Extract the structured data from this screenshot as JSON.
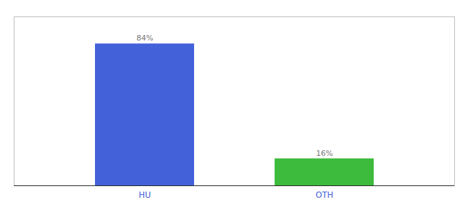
{
  "chart_data": {
    "type": "bar",
    "categories": [
      "HU",
      "OTH"
    ],
    "values": [
      84,
      16
    ],
    "value_labels": [
      "84%",
      "16%"
    ],
    "colors": [
      "#4361d8",
      "#3dbb3d"
    ],
    "ylim": [
      0,
      100
    ],
    "data_labels": true,
    "tick_labels": "x"
  }
}
